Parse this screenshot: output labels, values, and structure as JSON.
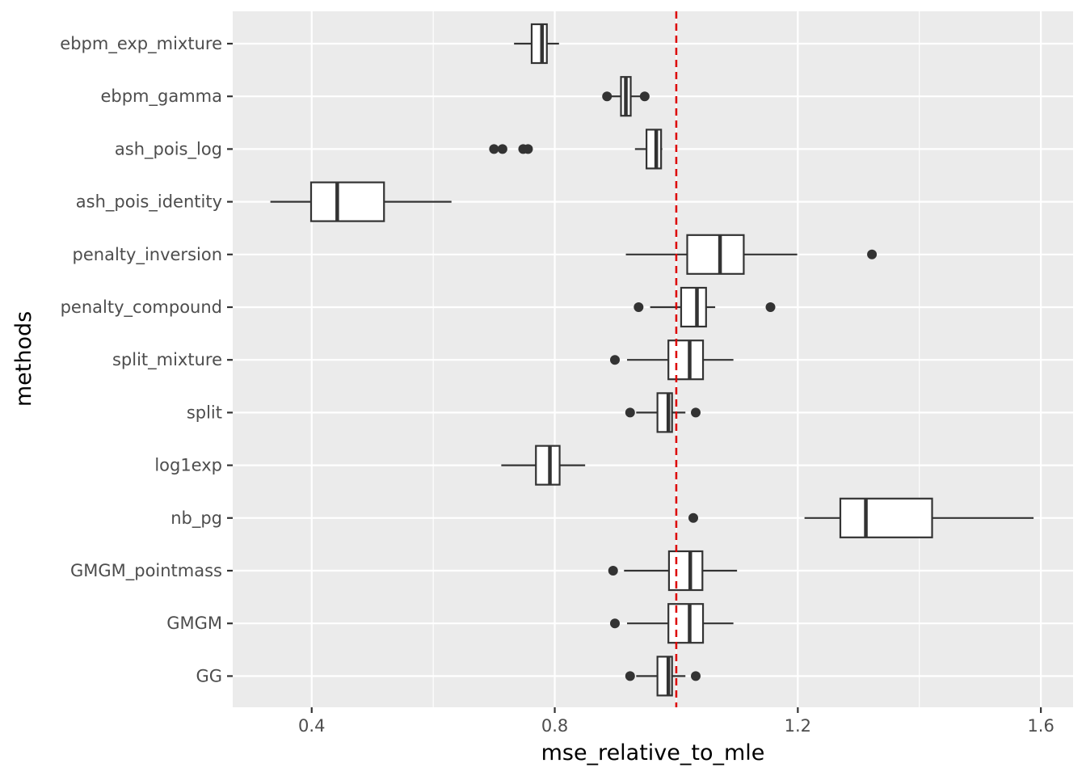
{
  "chart_data": {
    "type": "boxplot",
    "orientation": "horizontal",
    "title": "",
    "xlabel": "mse_relative_to_mle",
    "ylabel": "methods",
    "xlim": [
      0.27,
      1.653
    ],
    "xticks": [
      0.4,
      0.8,
      1.2,
      1.6
    ],
    "xtick_labels": [
      "0.4",
      "0.8",
      "1.2",
      "1.6"
    ],
    "x_minor_ticks": [
      0.6,
      1.0,
      1.4
    ],
    "reference_line": {
      "value": 1.0,
      "color": "#dd0000",
      "style": "dashed"
    },
    "grid": true,
    "colors": {
      "panel": "#ebebeb",
      "grid": "#ffffff",
      "box_fill": "#ffffff",
      "box_stroke": "#333333",
      "tick_text": "#4d4d4d"
    },
    "categories": [
      "ebpm_exp_mixture",
      "ebpm_gamma",
      "ash_pois_log",
      "ash_pois_identity",
      "penalty_inversion",
      "penalty_compound",
      "split_mixture",
      "split",
      "log1exp",
      "nb_pg",
      "GMGM_pointmass",
      "GMGM",
      "GG"
    ],
    "boxes": [
      {
        "method": "ebpm_exp_mixture",
        "whisker_low": 0.733,
        "q1": 0.762,
        "median": 0.779,
        "q3": 0.787,
        "whisker_high": 0.807,
        "outliers": []
      },
      {
        "method": "ebpm_gamma",
        "whisker_low": 0.889,
        "q1": 0.909,
        "median": 0.917,
        "q3": 0.925,
        "whisker_high": 0.948,
        "outliers": [
          0.886,
          0.948
        ]
      },
      {
        "method": "ash_pois_log",
        "whisker_low": 0.932,
        "q1": 0.951,
        "median": 0.967,
        "q3": 0.975,
        "whisker_high": 0.977,
        "outliers": [
          0.7,
          0.714,
          0.748,
          0.756
        ]
      },
      {
        "method": "ash_pois_identity",
        "whisker_low": 0.332,
        "q1": 0.399,
        "median": 0.442,
        "q3": 0.519,
        "whisker_high": 0.63,
        "outliers": []
      },
      {
        "method": "penalty_inversion",
        "whisker_low": 0.917,
        "q1": 1.018,
        "median": 1.072,
        "q3": 1.111,
        "whisker_high": 1.199,
        "outliers": [
          1.322
        ]
      },
      {
        "method": "penalty_compound",
        "whisker_low": 0.957,
        "q1": 1.008,
        "median": 1.034,
        "q3": 1.049,
        "whisker_high": 1.064,
        "outliers": [
          0.938,
          1.155
        ]
      },
      {
        "method": "split_mixture",
        "whisker_low": 0.919,
        "q1": 0.987,
        "median": 1.022,
        "q3": 1.044,
        "whisker_high": 1.094,
        "outliers": [
          0.899
        ]
      },
      {
        "method": "split",
        "whisker_low": 0.934,
        "q1": 0.969,
        "median": 0.987,
        "q3": 0.993,
        "whisker_high": 1.015,
        "outliers": [
          0.924,
          1.032
        ]
      },
      {
        "method": "log1exp",
        "whisker_low": 0.712,
        "q1": 0.769,
        "median": 0.792,
        "q3": 0.808,
        "whisker_high": 0.85,
        "outliers": []
      },
      {
        "method": "nb_pg",
        "whisker_low": 1.211,
        "q1": 1.27,
        "median": 1.312,
        "q3": 1.421,
        "whisker_high": 1.588,
        "outliers": [
          1.028
        ]
      },
      {
        "method": "GMGM_pointmass",
        "whisker_low": 0.914,
        "q1": 0.988,
        "median": 1.023,
        "q3": 1.043,
        "whisker_high": 1.1,
        "outliers": [
          0.896
        ]
      },
      {
        "method": "GMGM",
        "whisker_low": 0.919,
        "q1": 0.987,
        "median": 1.022,
        "q3": 1.044,
        "whisker_high": 1.094,
        "outliers": [
          0.899
        ]
      },
      {
        "method": "GG",
        "whisker_low": 0.934,
        "q1": 0.969,
        "median": 0.987,
        "q3": 0.993,
        "whisker_high": 1.015,
        "outliers": [
          0.924,
          1.032
        ]
      }
    ]
  }
}
